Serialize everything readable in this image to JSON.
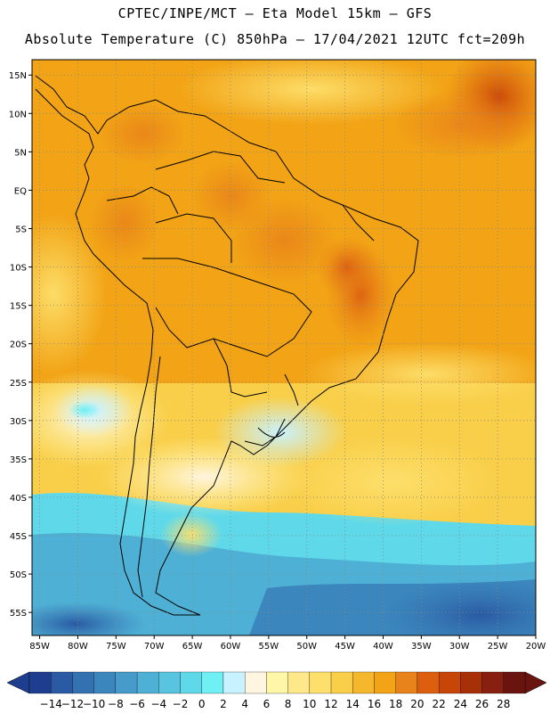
{
  "header": {
    "line1": "CPTEC/INPE/MCT –  Eta Model 15km – GFS",
    "line2": "Absolute Temperature (C) 850hPa – 17/04/2021 12UTC fct=209h"
  },
  "map": {
    "lat_labels": [
      "15N",
      "10N",
      "5N",
      "EQ",
      "5S",
      "10S",
      "15S",
      "20S",
      "25S",
      "30S",
      "35S",
      "40S",
      "45S",
      "50S",
      "55S"
    ],
    "lon_labels": [
      "85W",
      "80W",
      "75W",
      "70W",
      "65W",
      "60W",
      "55W",
      "50W",
      "45W",
      "40W",
      "35W",
      "30W",
      "25W",
      "20W"
    ],
    "lat_range": [
      17,
      -58
    ],
    "lon_range": [
      -86,
      -20
    ]
  },
  "legend": {
    "tick_labels": [
      "-14",
      "-12",
      "-10",
      "-8",
      "-6",
      "-4",
      "-2",
      "0",
      "2",
      "4",
      "6",
      "8",
      "10",
      "12",
      "14",
      "16",
      "18",
      "20",
      "22",
      "24",
      "26",
      "28"
    ],
    "colors": [
      "#1f3d8f",
      "#2a5aa3",
      "#3471b0",
      "#3b86bd",
      "#459bc9",
      "#4fb0d5",
      "#58c4df",
      "#5fd9ea",
      "#6ef0f5",
      "#c8f2ff",
      "#fff5e0",
      "#fff7a8",
      "#ffe88a",
      "#fde06c",
      "#f9cf4a",
      "#f5b82c",
      "#f2a416",
      "#e8821a",
      "#dc5f10",
      "#c84508",
      "#a83006",
      "#882012",
      "#6a1410"
    ]
  }
}
